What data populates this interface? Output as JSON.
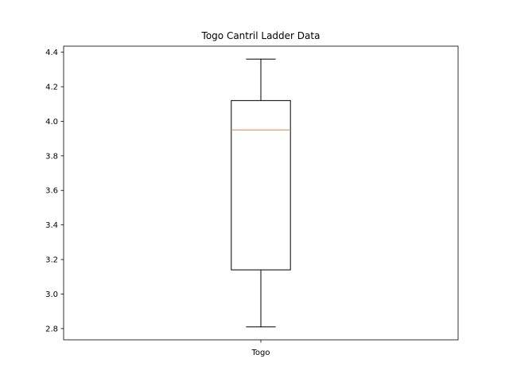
{
  "chart_data": {
    "type": "box",
    "title": "Togo Cantril Ladder Data",
    "xlabel": "",
    "ylabel": "",
    "categories": [
      "Togo"
    ],
    "boxes": [
      {
        "category": "Togo",
        "whisker_low": 2.81,
        "q1": 3.14,
        "median": 3.95,
        "q3": 4.12,
        "whisker_high": 4.36
      }
    ],
    "ylim": [
      2.735,
      4.435
    ],
    "yticks": [
      2.8,
      3.0,
      3.2,
      3.4,
      3.6,
      3.8,
      4.0,
      4.2,
      4.4
    ],
    "ytick_labels": [
      "2.8",
      "3.0",
      "3.2",
      "3.4",
      "3.6",
      "3.8",
      "4.0",
      "4.2",
      "4.4"
    ],
    "grid": false,
    "colors": {
      "box": "#000000",
      "median": "#ff7f0e",
      "whisker": "#000000"
    }
  }
}
